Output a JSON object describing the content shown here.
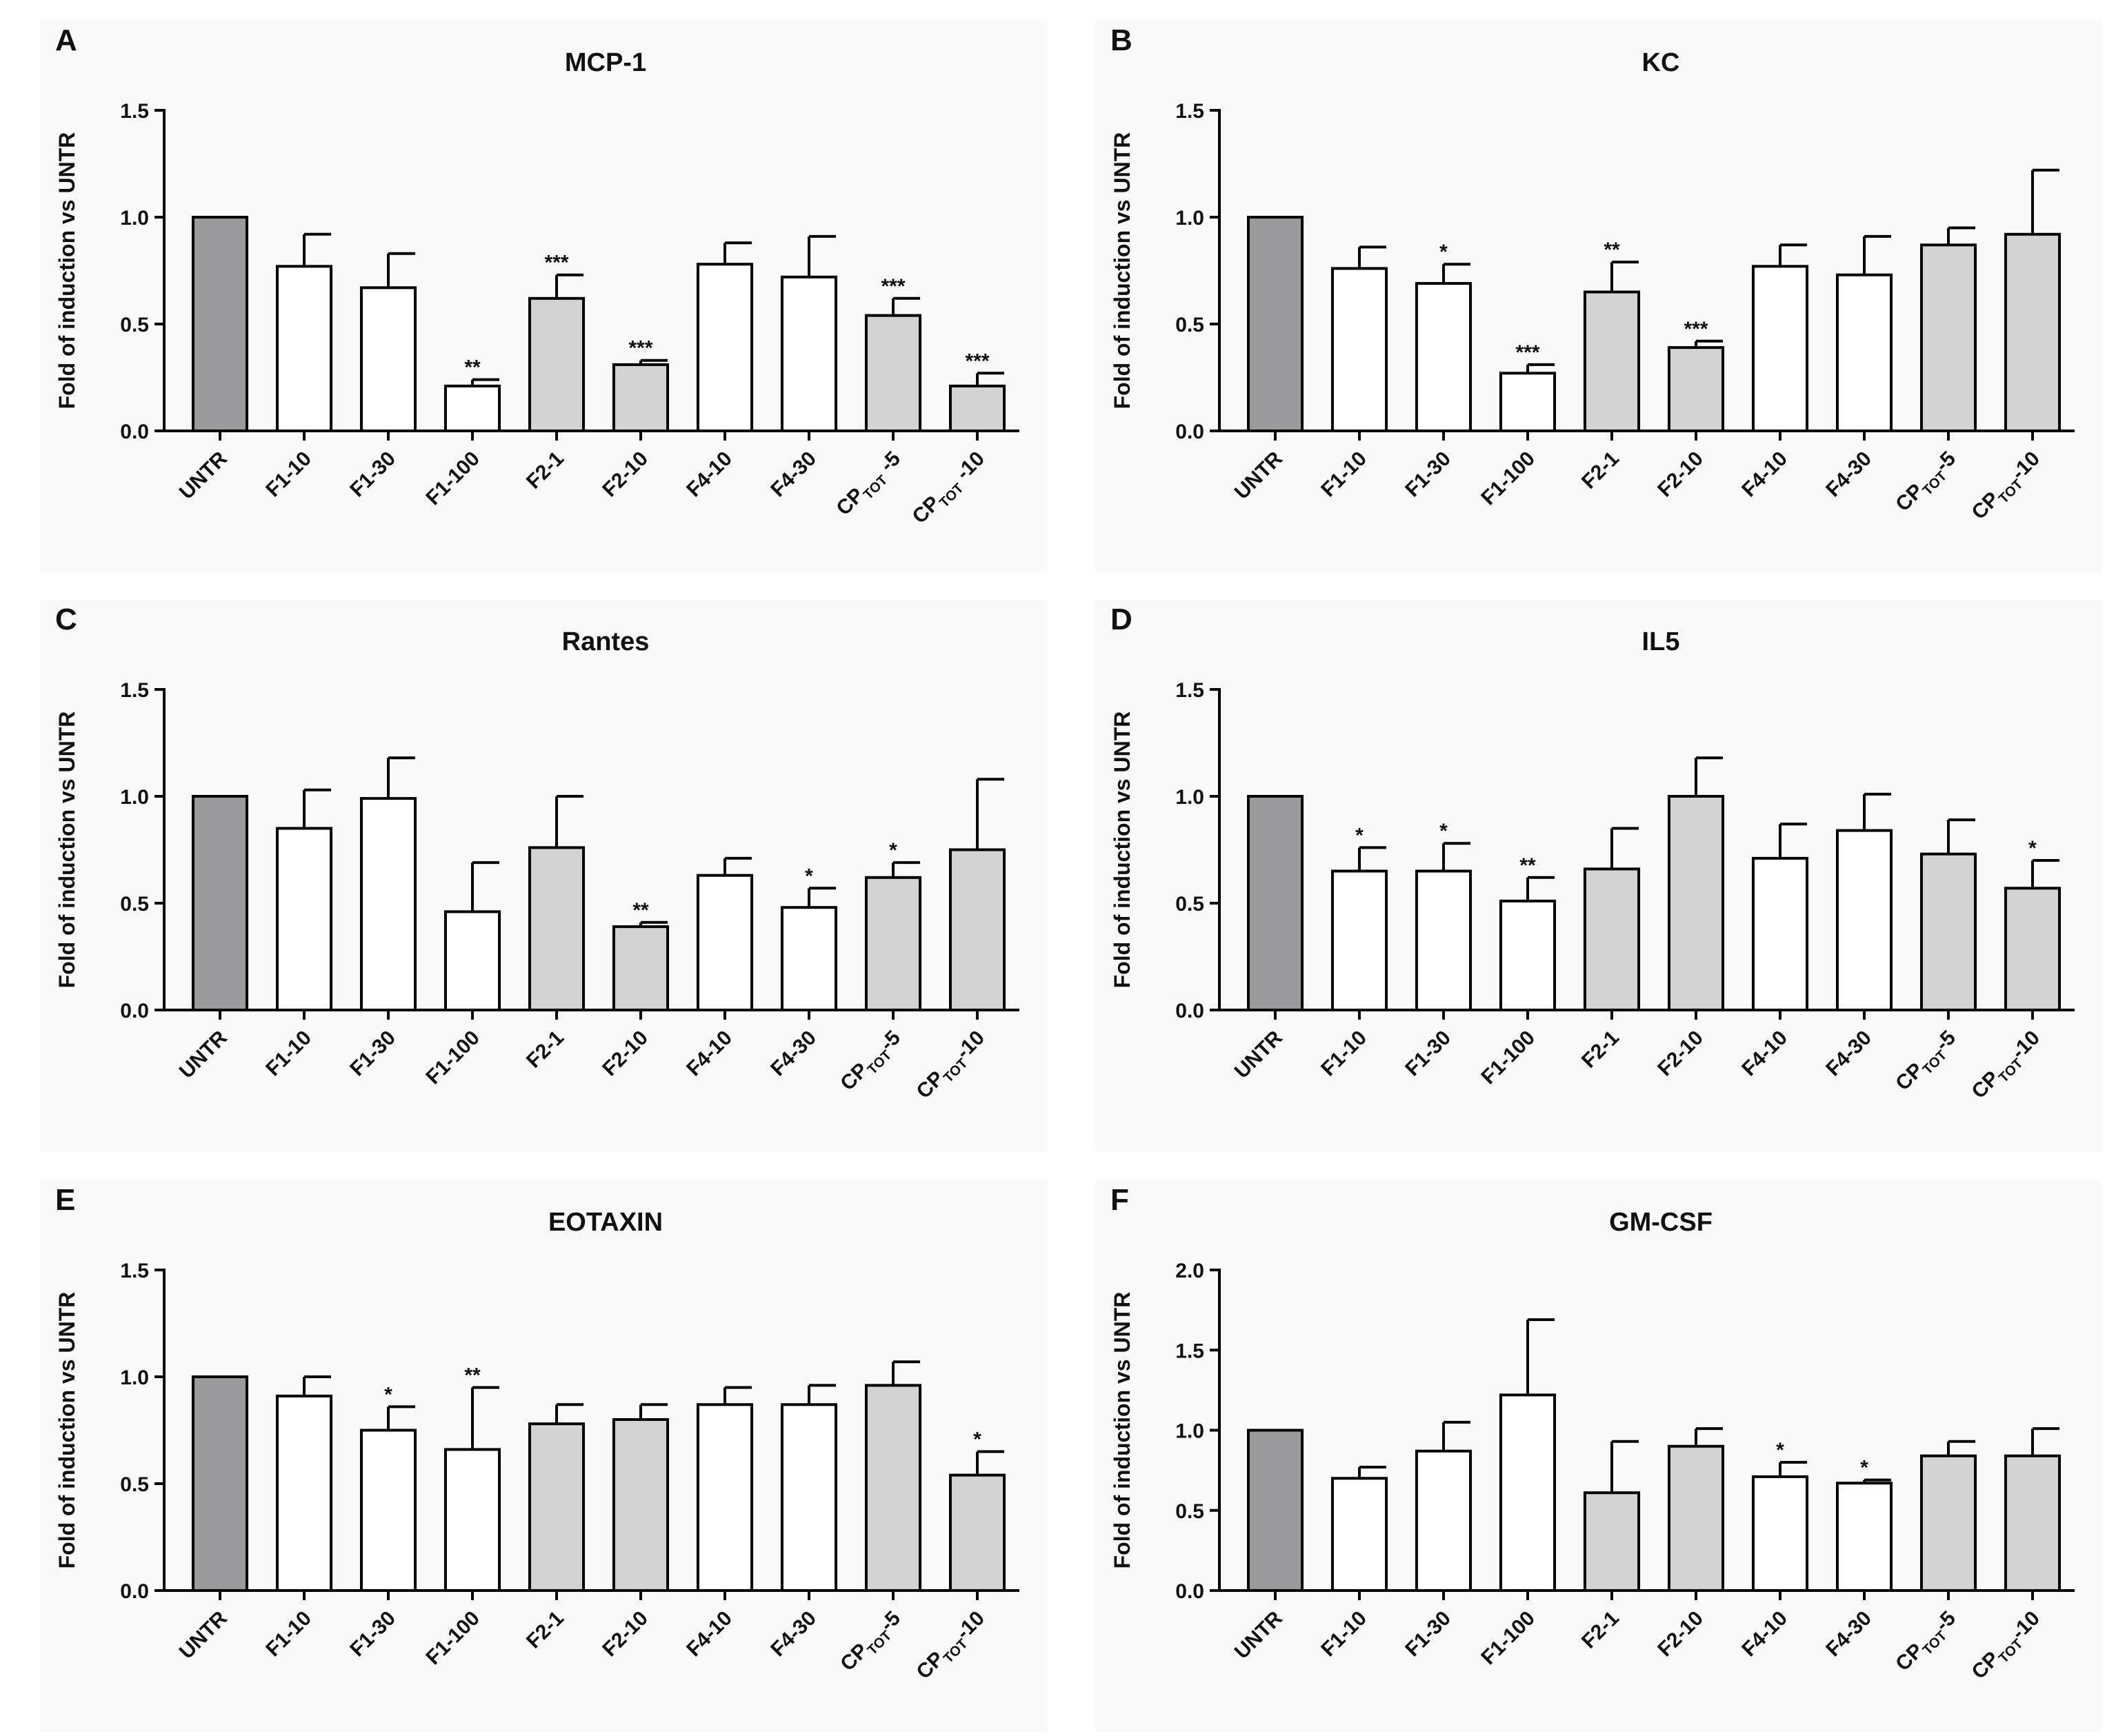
{
  "colors": {
    "untr": "#9a9a9d",
    "white": "#ffffff",
    "gray": "#d3d3d3",
    "stroke": "#000000",
    "panel_bg": "#f9f9f9"
  },
  "chart_data": [
    {
      "panel": "A",
      "title": "MCP-1",
      "type": "bar",
      "ylabel": "Fold of induction vs UNTR",
      "ylim": [
        0,
        1.5
      ],
      "yticks": [
        "0.0",
        "0.5",
        "1.0",
        "1.5"
      ],
      "categories": [
        "UNTR",
        "F1-10",
        "F1-30",
        "F1-100",
        "F2-1",
        "F2-10",
        "F4-10",
        "F4-30",
        "CP",
        "CP"
      ],
      "subscripts": [
        "",
        "",
        "",
        "",
        "",
        "",
        "",
        "",
        "TOT",
        "TOT"
      ],
      "suffixes": [
        "",
        "",
        "",
        "",
        "",
        "",
        "",
        "",
        " -5",
        " -10"
      ],
      "fills": [
        "untr",
        "white",
        "white",
        "white",
        "gray",
        "gray",
        "white",
        "white",
        "gray",
        "gray"
      ],
      "values": [
        1.0,
        0.77,
        0.67,
        0.21,
        0.62,
        0.31,
        0.78,
        0.72,
        0.54,
        0.21
      ],
      "errors": [
        0,
        0.15,
        0.16,
        0.03,
        0.11,
        0.02,
        0.1,
        0.19,
        0.08,
        0.06
      ],
      "sig": [
        "",
        "",
        "",
        "**",
        "***",
        "***",
        "",
        "",
        "***",
        "***"
      ]
    },
    {
      "panel": "B",
      "title": "KC",
      "type": "bar",
      "ylabel": "Fold of induction vs UNTR",
      "ylim": [
        0,
        1.5
      ],
      "yticks": [
        "0.0",
        "0.5",
        "1.0",
        "1.5"
      ],
      "categories": [
        "UNTR",
        "F1-10",
        "F1-30",
        "F1-100",
        "F2-1",
        "F2-10",
        "F4-10",
        "F4-30",
        "CP",
        "CP"
      ],
      "subscripts": [
        "",
        "",
        "",
        "",
        "",
        "",
        "",
        "",
        "TOT",
        "TOT"
      ],
      "suffixes": [
        "",
        "",
        "",
        "",
        "",
        "",
        "",
        "",
        "-5",
        "-10"
      ],
      "fills": [
        "untr",
        "white",
        "white",
        "white",
        "gray",
        "gray",
        "white",
        "white",
        "gray",
        "gray"
      ],
      "values": [
        1.0,
        0.76,
        0.69,
        0.27,
        0.65,
        0.39,
        0.77,
        0.73,
        0.87,
        0.92
      ],
      "errors": [
        0,
        0.1,
        0.09,
        0.04,
        0.14,
        0.03,
        0.1,
        0.18,
        0.08,
        0.3
      ],
      "sig": [
        "",
        "",
        "*",
        "***",
        "**",
        "***",
        "",
        "",
        "",
        ""
      ]
    },
    {
      "panel": "C",
      "title": "Rantes",
      "type": "bar",
      "ylabel": "Fold of induction vs UNTR",
      "ylim": [
        0,
        1.5
      ],
      "yticks": [
        "0.0",
        "0.5",
        "1.0",
        "1.5"
      ],
      "categories": [
        "UNTR",
        "F1-10",
        "F1-30",
        "F1-100",
        "F2-1",
        "F2-10",
        "F4-10",
        "F4-30",
        "CP",
        "CP"
      ],
      "subscripts": [
        "",
        "",
        "",
        "",
        "",
        "",
        "",
        "",
        "TOT",
        "TOT"
      ],
      "suffixes": [
        "",
        "",
        "",
        "",
        "",
        "",
        "",
        "",
        "-5",
        "-10"
      ],
      "fills": [
        "untr",
        "white",
        "white",
        "white",
        "gray",
        "gray",
        "white",
        "white",
        "gray",
        "gray"
      ],
      "values": [
        1.0,
        0.85,
        0.99,
        0.46,
        0.76,
        0.39,
        0.63,
        0.48,
        0.62,
        0.75
      ],
      "errors": [
        0,
        0.18,
        0.19,
        0.23,
        0.24,
        0.02,
        0.08,
        0.09,
        0.07,
        0.33
      ],
      "sig": [
        "",
        "",
        "",
        "",
        "",
        "**",
        "",
        "*",
        "*",
        ""
      ]
    },
    {
      "panel": "D",
      "title": "IL5",
      "type": "bar",
      "ylabel": "Fold of induction vs UNTR",
      "ylim": [
        0,
        1.5
      ],
      "yticks": [
        "0.0",
        "0.5",
        "1.0",
        "1.5"
      ],
      "categories": [
        "UNTR",
        "F1-10",
        "F1-30",
        "F1-100",
        "F2-1",
        "F2-10",
        "F4-10",
        "F4-30",
        "CP",
        "CP"
      ],
      "subscripts": [
        "",
        "",
        "",
        "",
        "",
        "",
        "",
        "",
        "TOT",
        "TOT"
      ],
      "suffixes": [
        "",
        "",
        "",
        "",
        "",
        "",
        "",
        "",
        "-5",
        "-10"
      ],
      "fills": [
        "untr",
        "white",
        "white",
        "white",
        "gray",
        "gray",
        "white",
        "white",
        "gray",
        "gray"
      ],
      "values": [
        1.0,
        0.65,
        0.65,
        0.51,
        0.66,
        1.0,
        0.71,
        0.84,
        0.73,
        0.57
      ],
      "errors": [
        0,
        0.11,
        0.13,
        0.11,
        0.19,
        0.18,
        0.16,
        0.17,
        0.16,
        0.13
      ],
      "sig": [
        "",
        "*",
        "*",
        "**",
        "",
        "",
        "",
        "",
        "",
        "*"
      ]
    },
    {
      "panel": "E",
      "title": "EOTAXIN",
      "type": "bar",
      "ylabel": "Fold of induction vs UNTR",
      "ylim": [
        0,
        1.5
      ],
      "yticks": [
        "0.0",
        "0.5",
        "1.0",
        "1.5"
      ],
      "categories": [
        "UNTR",
        "F1-10",
        "F1-30",
        "F1-100",
        "F2-1",
        "F2-10",
        "F4-10",
        "F4-30",
        "CP",
        "CP"
      ],
      "subscripts": [
        "",
        "",
        "",
        "",
        "",
        "",
        "",
        "",
        "TOT",
        "TOT"
      ],
      "suffixes": [
        "",
        "",
        "",
        "",
        "",
        "",
        "",
        "",
        "-5",
        "-10"
      ],
      "fills": [
        "untr",
        "white",
        "white",
        "white",
        "gray",
        "gray",
        "white",
        "white",
        "gray",
        "gray"
      ],
      "values": [
        1.0,
        0.91,
        0.75,
        0.66,
        0.78,
        0.8,
        0.87,
        0.87,
        0.96,
        0.54
      ],
      "errors": [
        0,
        0.09,
        0.11,
        0.29,
        0.09,
        0.07,
        0.08,
        0.09,
        0.11,
        0.11
      ],
      "sig": [
        "",
        "",
        "*",
        "**",
        "",
        "",
        "",
        "",
        "",
        "*"
      ]
    },
    {
      "panel": "F",
      "title": "GM-CSF",
      "type": "bar",
      "ylabel": "Fold of induction vs UNTR",
      "ylim": [
        0,
        2.0
      ],
      "yticks": [
        "0.0",
        "0.5",
        "1.0",
        "1.5",
        "2.0"
      ],
      "categories": [
        "UNTR",
        "F1-10",
        "F1-30",
        "F1-100",
        "F2-1",
        "F2-10",
        "F4-10",
        "F4-30",
        "CP",
        "CP"
      ],
      "subscripts": [
        "",
        "",
        "",
        "",
        "",
        "",
        "",
        "",
        "TOT",
        "TOT"
      ],
      "suffixes": [
        "",
        "",
        "",
        "",
        "",
        "",
        "",
        "",
        "-5",
        "-10"
      ],
      "fills": [
        "untr",
        "white",
        "white",
        "white",
        "gray",
        "gray",
        "white",
        "white",
        "gray",
        "gray"
      ],
      "values": [
        1.0,
        0.7,
        0.87,
        1.22,
        0.61,
        0.9,
        0.71,
        0.67,
        0.84,
        0.84
      ],
      "errors": [
        0,
        0.07,
        0.18,
        0.47,
        0.32,
        0.11,
        0.09,
        0.02,
        0.09,
        0.17
      ],
      "sig": [
        "",
        "",
        "",
        "",
        "",
        "",
        "*",
        "*",
        "",
        ""
      ]
    }
  ]
}
